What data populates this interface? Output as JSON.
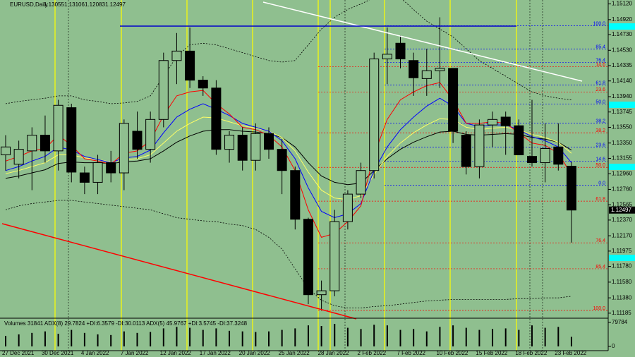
{
  "chart_data": {
    "type": "candlestick",
    "title": "EURUSD,Daily",
    "categories": [
      "27 Dec 2021",
      null,
      null,
      "30 Dec 2021",
      null,
      null,
      "4 Jan 2022",
      null,
      null,
      "7 Jan 2022",
      null,
      null,
      "12 Jan 2022",
      null,
      null,
      "17 Jan 2022",
      null,
      null,
      "20 Jan 2022",
      null,
      null,
      "25 Jan 2022",
      null,
      null,
      "28 Jan 2022",
      null,
      null,
      "2 Feb 2022",
      null,
      null,
      "7 Feb 2022",
      null,
      null,
      "10 Feb 2022",
      null,
      null,
      "15 Feb 2022",
      null,
      null,
      "18 Feb 2022",
      null,
      null,
      "23 Feb 2022",
      null
    ],
    "open": [
      1.132,
      1.1308,
      1.1325,
      1.1345,
      1.1325,
      1.138,
      1.1297,
      1.1285,
      1.131,
      1.1297,
      1.135,
      1.1327,
      1.1365,
      1.144,
      1.1452,
      1.1415,
      1.1405,
      1.1327,
      1.1345,
      1.1313,
      1.1347,
      1.1327,
      1.13,
      1.1238,
      1.1142,
      1.1147,
      1.1235,
      1.127,
      1.13,
      1.1442,
      1.1462,
      1.144,
      1.1417,
      1.1427,
      1.143,
      1.1345,
      1.1305,
      1.1358,
      1.1368,
      1.1357,
      1.1318,
      1.131,
      1.133,
      1.13055
    ],
    "high": [
      1.1345,
      1.1338,
      1.1355,
      1.137,
      1.139,
      1.1385,
      1.1305,
      1.132,
      1.1325,
      1.1365,
      1.1375,
      1.1375,
      1.145,
      1.1475,
      1.1482,
      1.142,
      1.1415,
      1.135,
      1.1355,
      1.136,
      1.1355,
      1.134,
      1.1305,
      1.124,
      1.116,
      1.125,
      1.1275,
      1.131,
      1.145,
      1.1482,
      1.1472,
      1.145,
      1.1455,
      1.1495,
      1.143,
      1.135,
      1.1365,
      1.1375,
      1.1375,
      1.1365,
      1.139,
      1.136,
      1.136,
      1.13106
    ],
    "low": [
      1.13,
      1.129,
      1.1275,
      1.131,
      1.13,
      1.1285,
      1.127,
      1.127,
      1.1285,
      1.1275,
      1.1315,
      1.131,
      1.1355,
      1.141,
      1.1405,
      1.1395,
      1.132,
      1.131,
      1.13,
      1.13,
      1.1315,
      1.127,
      1.1225,
      1.113,
      1.1122,
      1.114,
      1.1225,
      1.1265,
      1.129,
      1.141,
      1.143,
      1.1395,
      1.1395,
      1.1405,
      1.1335,
      1.1295,
      1.129,
      1.133,
      1.132,
      1.132,
      1.1305,
      1.1285,
      1.13,
      1.12083
    ],
    "close": [
      1.133,
      1.1327,
      1.1345,
      1.1325,
      1.1383,
      1.1298,
      1.1285,
      1.131,
      1.1297,
      1.136,
      1.1327,
      1.1365,
      1.144,
      1.1452,
      1.1415,
      1.1405,
      1.1327,
      1.1345,
      1.1313,
      1.1347,
      1.1327,
      1.13,
      1.1238,
      1.1142,
      1.1147,
      1.1235,
      1.127,
      1.13,
      1.1442,
      1.1448,
      1.1442,
      1.1418,
      1.1427,
      1.143,
      1.135,
      1.1305,
      1.1358,
      1.1365,
      1.1357,
      1.132,
      1.131,
      1.1328,
      1.1308,
      1.12497
    ],
    "lines": [
      {
        "color": "#000000",
        "style": "dotted",
        "values": [
          1.1385,
          1.1388,
          1.139,
          1.1392,
          1.1395,
          1.1395,
          1.139,
          1.1388,
          1.1385,
          1.1386,
          1.1388,
          1.1395,
          1.142,
          1.1445,
          1.146,
          1.1462,
          1.146,
          1.1455,
          1.145,
          1.1445,
          1.144,
          1.1438,
          1.144,
          1.146,
          1.148,
          1.1495,
          1.1505,
          1.1512,
          1.152,
          1.1525,
          1.152,
          1.1505,
          1.149,
          1.148,
          1.147,
          1.1455,
          1.144,
          1.143,
          1.142,
          1.141,
          1.14,
          1.1395,
          1.1392,
          1.139
        ]
      },
      {
        "color": "#000000",
        "style": "dotted",
        "values": [
          1.125,
          1.1255,
          1.1258,
          1.126,
          1.1262,
          1.1262,
          1.126,
          1.1258,
          1.1256,
          1.1254,
          1.1252,
          1.125,
          1.1245,
          1.124,
          1.1238,
          1.1236,
          1.1235,
          1.1232,
          1.123,
          1.1225,
          1.1215,
          1.12,
          1.1175,
          1.115,
          1.1135,
          1.1128,
          1.1125,
          1.1125,
          1.1127,
          1.1128,
          1.113,
          1.1132,
          1.1134,
          1.1135,
          1.1136,
          1.1136,
          1.1136,
          1.1136,
          1.1136,
          1.1137,
          1.1137,
          1.1138,
          1.1138,
          1.114
        ]
      },
      {
        "color": "#000000",
        "style": "solid",
        "values": [
          1.129,
          1.1293,
          1.1297,
          1.1301,
          1.1309,
          1.1311,
          1.131,
          1.131,
          1.1309,
          1.1311,
          1.1312,
          1.1315,
          1.1325,
          1.1336,
          1.1344,
          1.135,
          1.1352,
          1.1352,
          1.135,
          1.1349,
          1.1347,
          1.1342,
          1.133,
          1.131,
          1.1293,
          1.1285,
          1.1282,
          1.1284,
          1.13,
          1.1315,
          1.1327,
          1.1336,
          1.1343,
          1.1349,
          1.135,
          1.1346,
          1.1345,
          1.1346,
          1.1347,
          1.1346,
          1.1342,
          1.134,
          1.1336,
          1.1326
        ]
      },
      {
        "color": "#ffff66",
        "style": "solid",
        "values": [
          1.1296,
          1.13,
          1.1305,
          1.131,
          1.132,
          1.132,
          1.1316,
          1.1314,
          1.1311,
          1.1314,
          1.1315,
          1.132,
          1.1335,
          1.135,
          1.136,
          1.1368,
          1.1367,
          1.1362,
          1.1357,
          1.1354,
          1.135,
          1.1342,
          1.1325,
          1.1298,
          1.1275,
          1.1265,
          1.1263,
          1.1268,
          1.1295,
          1.1318,
          1.1335,
          1.1348,
          1.1358,
          1.1366,
          1.1365,
          1.1355,
          1.1352,
          1.1354,
          1.1355,
          1.1352,
          1.1346,
          1.1342,
          1.1336,
          1.1322
        ]
      },
      {
        "color": "#0000ff",
        "style": "solid",
        "values": [
          1.13,
          1.1305,
          1.1312,
          1.1318,
          1.133,
          1.1326,
          1.1318,
          1.1314,
          1.131,
          1.1316,
          1.1318,
          1.1326,
          1.1348,
          1.1368,
          1.1378,
          1.1385,
          1.1378,
          1.137,
          1.136,
          1.1355,
          1.135,
          1.1338,
          1.1315,
          1.1278,
          1.1248,
          1.124,
          1.1245,
          1.1258,
          1.13,
          1.133,
          1.1352,
          1.1368,
          1.1382,
          1.1392,
          1.1382,
          1.136,
          1.1356,
          1.1358,
          1.1358,
          1.1352,
          1.1343,
          1.1338,
          1.133,
          1.131
        ]
      },
      {
        "color": "#ff0000",
        "style": "solid",
        "values": [
          1.1312,
          1.1318,
          1.1325,
          1.1328,
          1.1345,
          1.1332,
          1.1315,
          1.1312,
          1.1308,
          1.1322,
          1.1325,
          1.1338,
          1.137,
          1.1395,
          1.14,
          1.1402,
          1.1385,
          1.1372,
          1.1355,
          1.1352,
          1.1345,
          1.133,
          1.13,
          1.125,
          1.1215,
          1.122,
          1.1235,
          1.1255,
          1.132,
          1.1365,
          1.139,
          1.14,
          1.1408,
          1.1412,
          1.139,
          1.136,
          1.136,
          1.1362,
          1.136,
          1.1348,
          1.1335,
          1.1332,
          1.1322,
          1.1295
        ]
      }
    ],
    "fib_levels": [
      {
        "label": "100.0",
        "price": 1.14842,
        "color": "#0000ff"
      },
      {
        "label": "85.4",
        "price": 1.14545,
        "color": "#0000ff"
      },
      {
        "label": "76.4",
        "price": 1.14375,
        "color": "#0000ff"
      },
      {
        "label": "61.8",
        "price": 1.14087,
        "color": "#0000ff"
      },
      {
        "label": "50.0",
        "price": 1.13845,
        "color": "#0000ff"
      },
      {
        "label": "38.2",
        "price": 1.13602,
        "color": "#0000ff"
      },
      {
        "label": "23.6",
        "price": 1.13297,
        "color": "#0000ff"
      },
      {
        "label": "14.6",
        "price": 1.13117,
        "color": "#0000ff"
      },
      {
        "label": "0.0",
        "price": 1.12812,
        "color": "#0000ff"
      },
      {
        "label": "14.6",
        "price": 1.1432,
        "color": "#ff0000"
      },
      {
        "label": "23.6",
        "price": 1.14,
        "color": "#ff0000"
      },
      {
        "label": "38.2",
        "price": 1.1348,
        "color": "#ff0000"
      },
      {
        "label": "50.0",
        "price": 1.1304,
        "color": "#ff0000"
      },
      {
        "label": "61.8",
        "price": 1.1261,
        "color": "#ff0000"
      },
      {
        "label": "76.4",
        "price": 1.1208,
        "color": "#ff0000"
      },
      {
        "label": "85.4",
        "price": 1.1175,
        "color": "#ff0000"
      },
      {
        "label": "100.0",
        "price": 1.1122,
        "color": "#ff0000"
      }
    ],
    "ylim": [
      1.1113,
      1.1517
    ],
    "yticks": [
      {
        "value": 1.1512,
        "label": "1.15120"
      },
      {
        "value": 1.1492,
        "label": "1.14920"
      },
      {
        "value": 1.1473,
        "label": "1.14730"
      },
      {
        "value": 1.1453,
        "label": "1.14530"
      },
      1.14335,
      {
        "value": 1.1414,
        "label": "1.14140"
      },
      {
        "value": 1.1394,
        "label": "1.13940"
      },
      1.13745,
      {
        "value": 1.1355,
        "label": "1.13550"
      },
      {
        "value": 1.1335,
        "label": "1.13350"
      },
      1.13155,
      {
        "value": 1.1296,
        "label": "1.12960"
      },
      {
        "value": 1.1276,
        "label": "1.12760"
      },
      1.12565,
      {
        "value": 1.1237,
        "label": "1.12370"
      },
      {
        "value": 1.1217,
        "label": "1.12170"
      },
      1.11975,
      {
        "value": 1.1178,
        "label": "1.11780"
      },
      {
        "value": 1.1158,
        "label": "1.11580"
      },
      {
        "value": 1.1138,
        "label": "1.11380"
      },
      1.11185
    ],
    "volume": {
      "title": "Volumes 31841 ADX(8) 29.7824 +DI:6.3579 -DI:30.0113 ADX(5) 45.9767 +DI:3.5745 -DI:37.3248",
      "values": [
        35000,
        40000,
        45000,
        50000,
        42000,
        55000,
        45000,
        40000,
        38000,
        50000,
        45000,
        48000,
        60000,
        65000,
        62000,
        55000,
        60000,
        52000,
        50000,
        48000,
        50000,
        55000,
        60000,
        70000,
        68000,
        75000,
        62000,
        58000,
        72000,
        70000,
        55000,
        58000,
        50000,
        65000,
        70000,
        62000,
        55000,
        58000,
        60000,
        55000,
        70000,
        62000,
        65000,
        31841
      ],
      "ylim": [
        0,
        79784
      ],
      "yticks": [
        0,
        79784
      ]
    }
  }
}
